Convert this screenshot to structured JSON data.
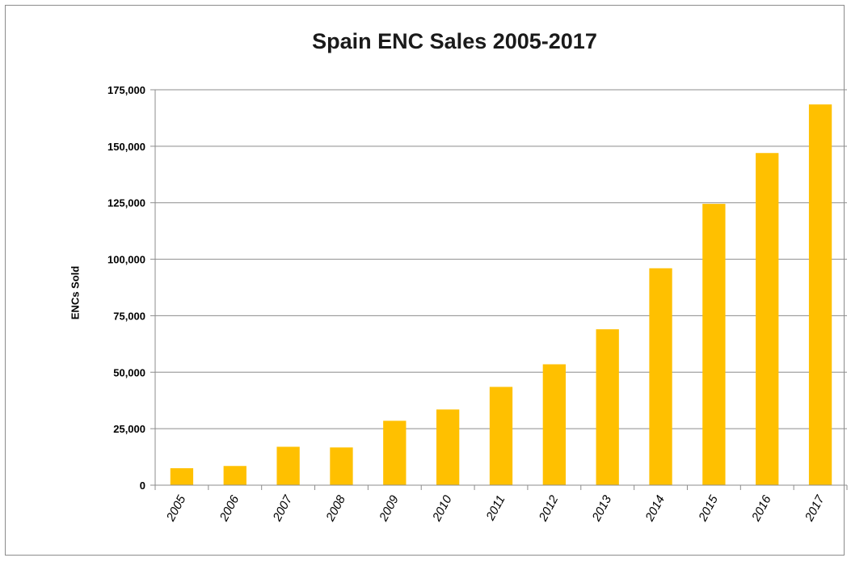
{
  "chart_data": {
    "type": "bar",
    "title": "Spain ENC Sales 2005-2017",
    "xlabel": "",
    "ylabel": "ENCs Sold",
    "categories": [
      "2005",
      "2006",
      "2007",
      "2008",
      "2009",
      "2010",
      "2011",
      "2012",
      "2013",
      "2014",
      "2015",
      "2016",
      "2017"
    ],
    "values": [
      7500,
      8500,
      17000,
      16700,
      28500,
      33500,
      43500,
      53500,
      69000,
      96000,
      124500,
      147000,
      168500
    ],
    "ylim": [
      0,
      175000
    ],
    "yticks": [
      0,
      25000,
      50000,
      75000,
      100000,
      125000,
      150000,
      175000
    ],
    "ytick_labels": [
      "0",
      "25,000",
      "50,000",
      "75,000",
      "100,000",
      "125,000",
      "150,000",
      "175,000"
    ],
    "grid": true,
    "bar_color": "#FFC000",
    "legend": "none"
  }
}
